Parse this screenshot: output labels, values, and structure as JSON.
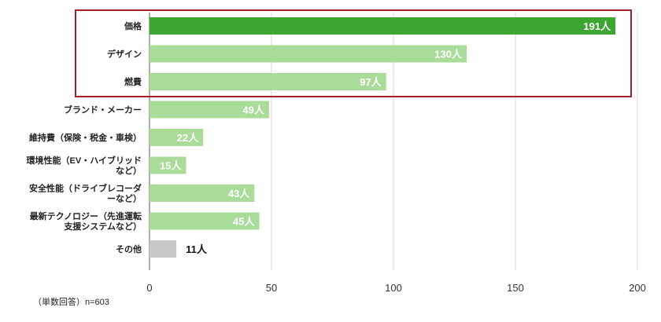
{
  "chart_data": {
    "type": "bar",
    "orientation": "horizontal",
    "categories": [
      [
        "価格"
      ],
      [
        "デザイン"
      ],
      [
        "燃費"
      ],
      [
        "ブランド・メーカー"
      ],
      [
        "維持費（保険・税金・車検）"
      ],
      [
        "環境性能（EV・ハイブリッド",
        "など）"
      ],
      [
        "安全性能（ドライブレコーダ",
        "ーなど）"
      ],
      [
        "最新テクノロジー（先進運転",
        "支援システムなど）"
      ],
      [
        "その他"
      ]
    ],
    "values": [
      191,
      130,
      97,
      49,
      22,
      15,
      43,
      45,
      11
    ],
    "value_labels": [
      "191人",
      "130人",
      "97人",
      "49人",
      "22人",
      "15人",
      "43人",
      "45人",
      "11人"
    ],
    "xlim": [
      0,
      200
    ],
    "xticks": [
      "0",
      "50",
      "100",
      "150",
      "200"
    ],
    "grid": true,
    "highlight": {
      "from": 0,
      "to": 2,
      "color": "#a31e2e"
    },
    "colors": {
      "top": "#3da632",
      "default": "#a9dc98",
      "other": "#c8c8c8",
      "grid": "#d9d9d9",
      "axis": "#777777"
    },
    "note": "（単数回答）n=603"
  }
}
